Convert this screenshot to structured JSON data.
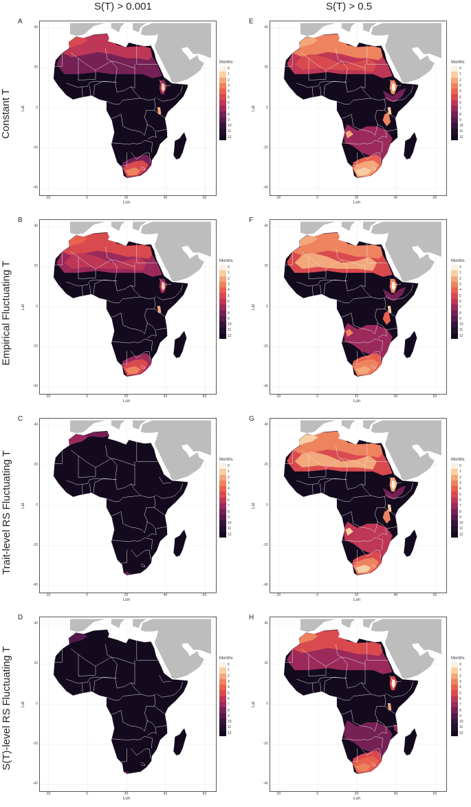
{
  "column_titles": [
    "S(T) > 0.001",
    "S(T) > 0.5"
  ],
  "row_titles": [
    "Constant T",
    "Empirical Fluctuating  T",
    "Trait-level RS Fluctuating  T",
    "S(T)-level RS Fluctuating  T"
  ],
  "panel_letters": [
    [
      "A",
      "E"
    ],
    [
      "B",
      "F"
    ],
    [
      "C",
      "G"
    ],
    [
      "D",
      "H"
    ]
  ],
  "axis": {
    "xlabel": "Lon",
    "ylabel": "Lat",
    "xticks": [
      "-20",
      "0",
      "20",
      "40",
      "60"
    ],
    "yticks": [
      "40",
      "20",
      "0",
      "-20",
      "-40"
    ]
  },
  "legend": {
    "title": "Months",
    "labels": [
      "0",
      "1",
      "2",
      "3",
      "4",
      "5",
      "6",
      "7",
      "8",
      "9",
      "10",
      "11",
      "12"
    ],
    "colors": [
      "#fbf1e4",
      "#f8cfa3",
      "#f3a77a",
      "#ee835f",
      "#e8624f",
      "#d94a4f",
      "#bf3756",
      "#9b2a5b",
      "#752155",
      "#531a49",
      "#35153a",
      "#22102c",
      "#130a1e"
    ]
  },
  "map_colors": {
    "land_bg": "#bdbdbd",
    "africa_base": "#130a1e",
    "border": "#e6e6e6"
  }
}
